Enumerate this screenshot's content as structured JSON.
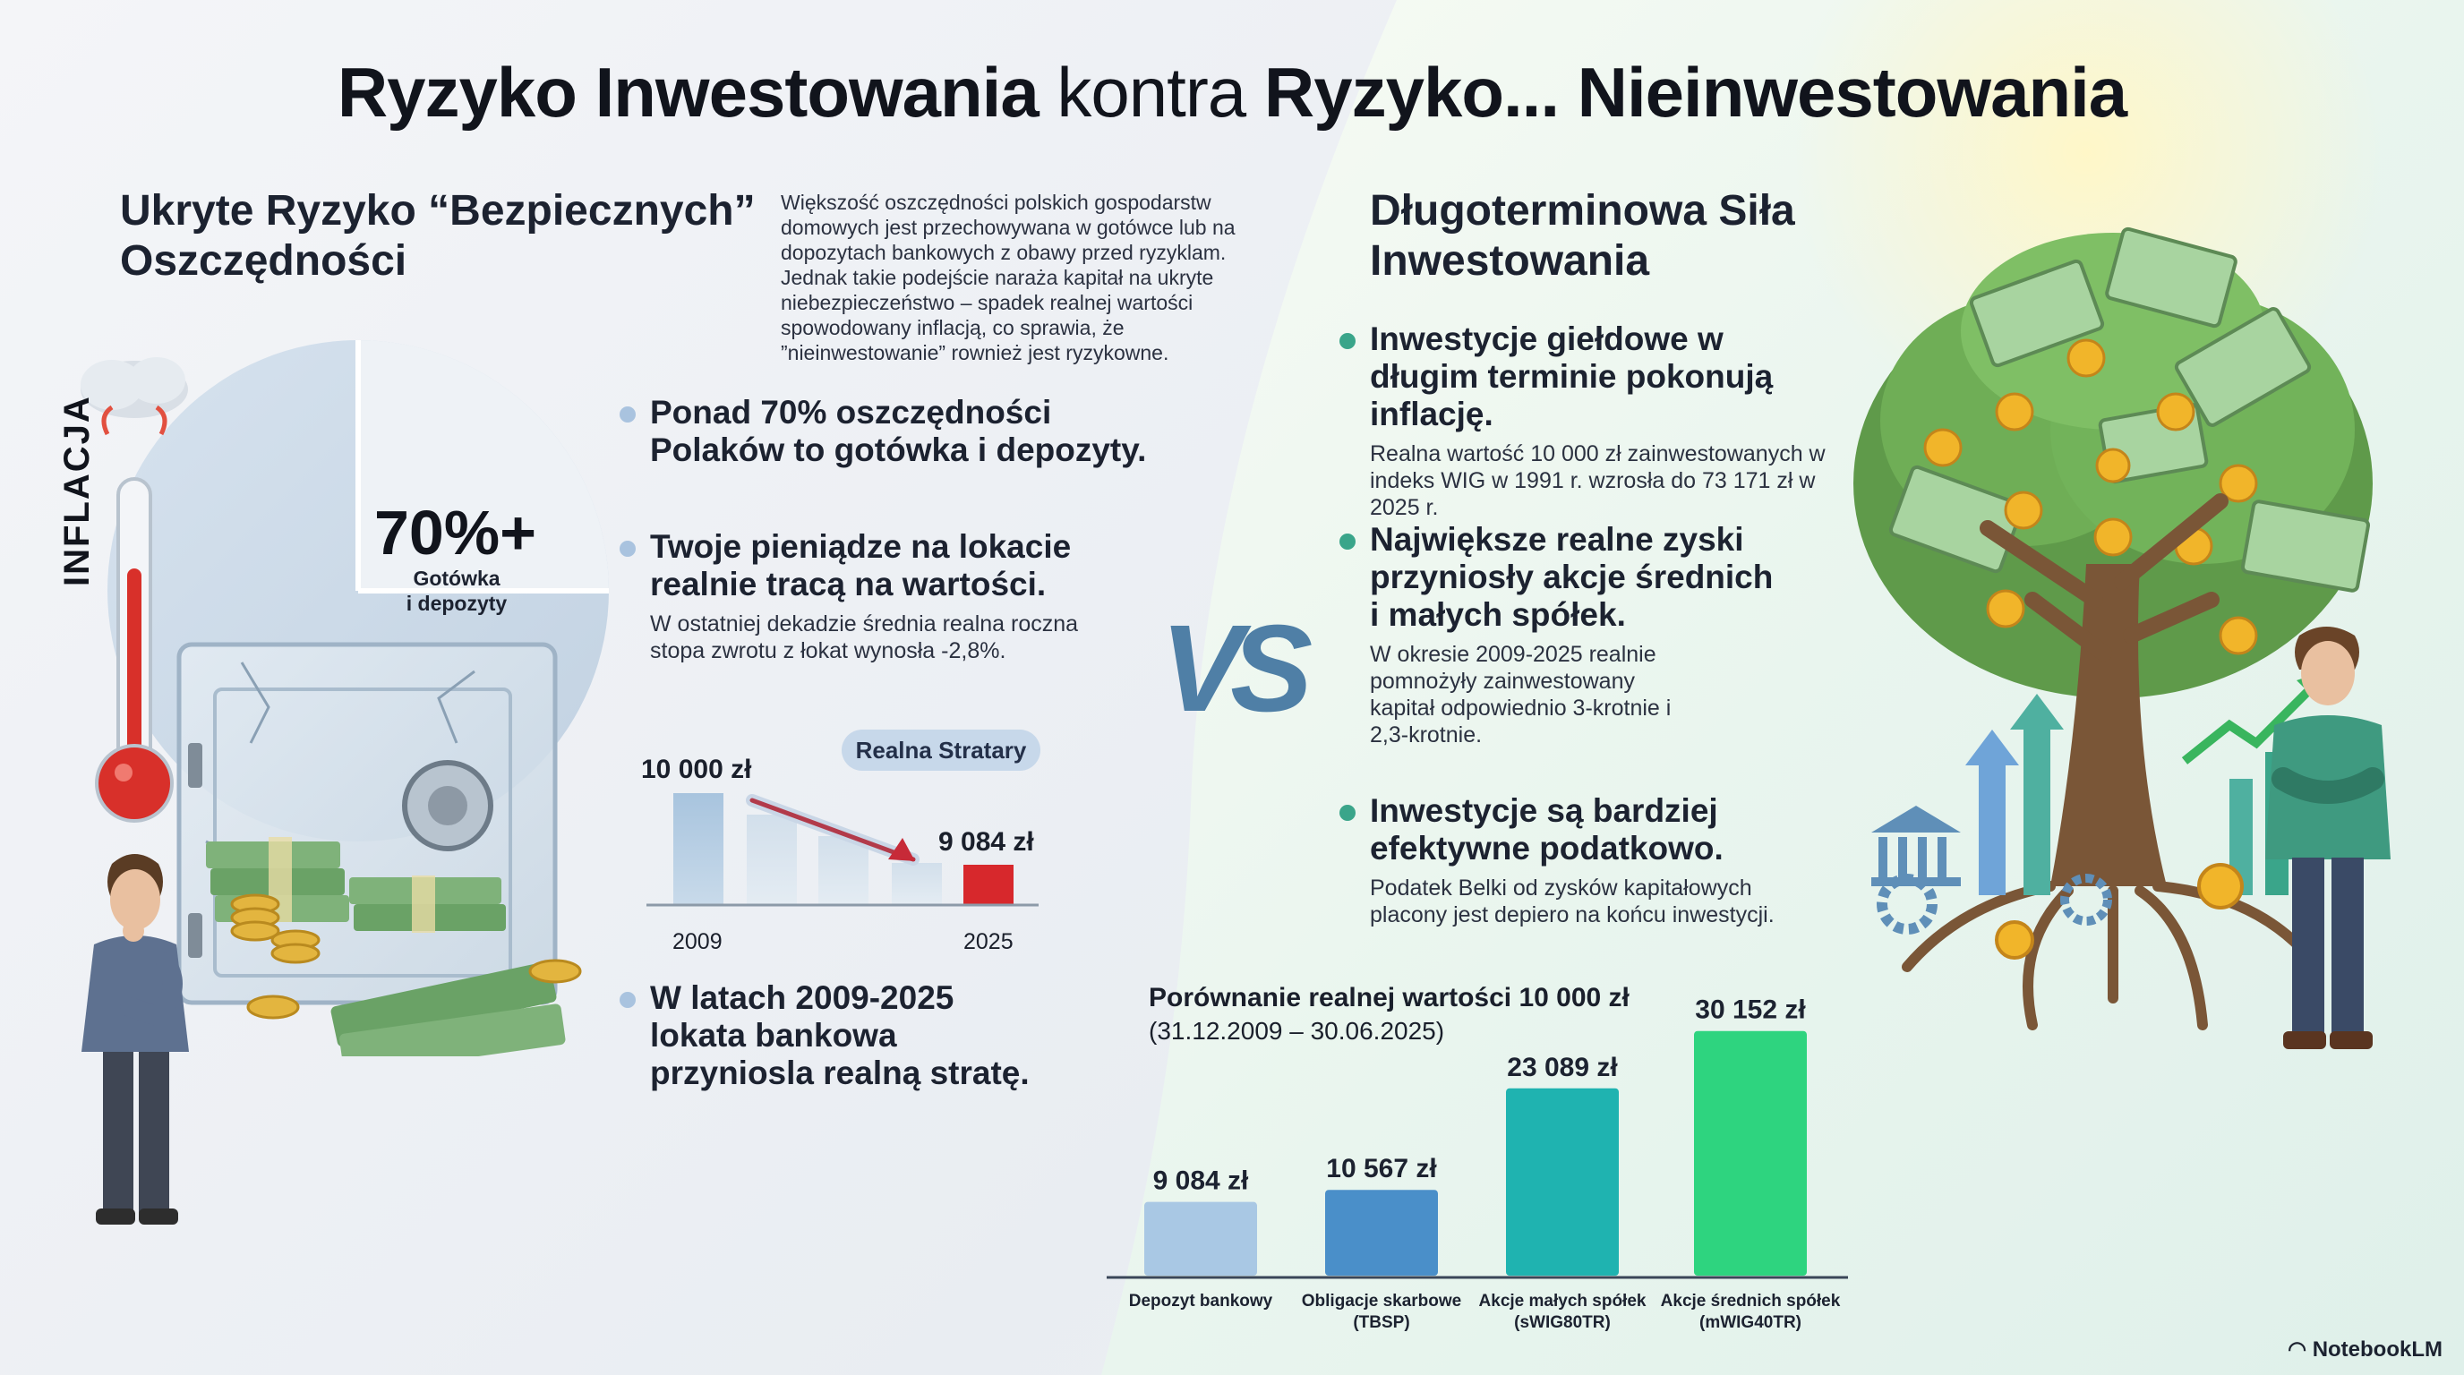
{
  "title": {
    "part1": "Ryzyko Inwestowania",
    "part2": "kontra",
    "part3": "Ryzyko... Nieinwestowania"
  },
  "left": {
    "heading": "Ukryte Ryzyko “Bezpiecznych” Oszczędności",
    "intro": "Większość oszczędności polskich gospodarstw domowych jest przechowywana w gotówce lub na dopozytach bankowych z obawy przed ryzyklam. Jednak takie podejście naraża kapitał na ukryte niebezpieczeństwo – spadek realnej wartości spowodowany inflacją, co sprawia, że ”nieinwestowanie” rownież jest ryzykowne.",
    "pie_value": "70%+",
    "pie_label_1": "Gotówka",
    "pie_label_2": "i depozyty",
    "thermometer_label": "INFLACJA",
    "bullets": [
      {
        "head": "Ponad 70% oszczędności Polaków to gotówka i depozyty.",
        "sub": ""
      },
      {
        "head": "Twoje pieniądze na lokacie realnie tracą na wartości.",
        "sub": "W ostatniej dekadzie średnia realna roczna stopa zwrotu z łokat wynosła -2,8%."
      },
      {
        "head": "W latach 2009-2025 lokata bankowa przyniosla realną stratę.",
        "sub": ""
      }
    ],
    "mini_chart": {
      "pill": "Realna Stratary",
      "start_value": "10 000 zł",
      "end_value": "9 084 zł",
      "start_year": "2009",
      "end_year": "2025"
    }
  },
  "vs": "VS",
  "right": {
    "heading": "Długoterminowa Siła Inwestowania",
    "bullets": [
      {
        "head": "Inwestycje giełdowe w długim terminie pokonują inflację.",
        "sub": "Realna wartość 10 000 zł zainwestowanych w indeks WIG w 1991 r. wzrosła do 73 171 zł w 2025 r."
      },
      {
        "head": "Największe realne zyski przyniosły akcje średnich i małych spółek.",
        "sub": "W okresie 2009-2025 realnie pomnożyły zainwestowany kapitał odpowiednio 3-krotnie i 2,3-krotnie."
      },
      {
        "head": "Inwestycje są bardziej efektywne podatkowo.",
        "sub": "Podatek Belki od zysków kapitałowych placony jest depiero na końcu inwestycji."
      }
    ]
  },
  "chart_data": {
    "type": "bar",
    "title": "Porównanie realnej wartości 10 000 zł",
    "subtitle": "(31.12.2009 – 30.06.2025)",
    "categories": [
      "Depozyt bankowy",
      "Obligacje skarbowe (TBSP)",
      "Akcje małych spółek (sWIG80TR)",
      "Akcje średnich spółek (mWIG40TR)"
    ],
    "category_lines": [
      [
        "Depozyt bankowy"
      ],
      [
        "Obligacje skarbowe",
        "(TBSP)"
      ],
      [
        "Akcje małych spółek",
        "(sWIG80TR)"
      ],
      [
        "Akcje średnich spółek",
        "(mWIG40TR)"
      ]
    ],
    "values": [
      9084,
      10567,
      23089,
      30152
    ],
    "value_labels": [
      "9 084 zł",
      "10 567 zł",
      "23 089 zł",
      "30 152 zł"
    ],
    "colors": [
      "#a9c8e4",
      "#4a8fc9",
      "#1fb3b0",
      "#2ed47f"
    ],
    "ylim": [
      0,
      32000
    ]
  },
  "footer": {
    "brand": "NotebookLM"
  }
}
